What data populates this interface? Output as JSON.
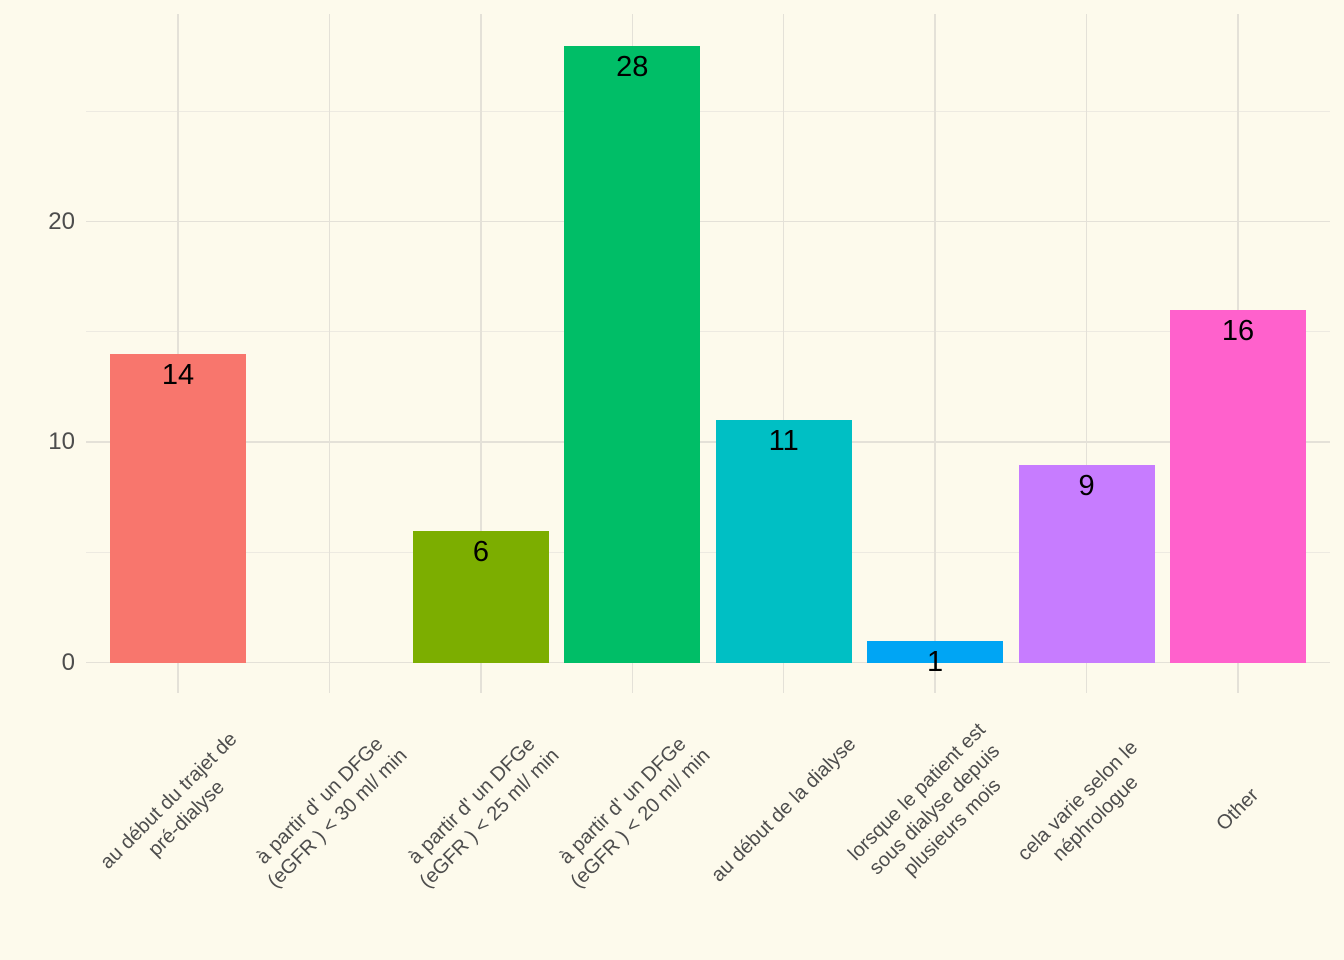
{
  "chart_data": {
    "type": "bar",
    "title": "",
    "xlabel": "",
    "ylabel": "",
    "categories": [
      "au début du trajet de\npré-dialyse",
      "à partir d' un DFGe\n(eGFR ) < 30 ml/ min",
      "à partir d' un DFGe\n(eGFR ) < 25 ml/ min",
      "à partir d' un DFGe\n(eGFR ) < 20 ml/ min",
      "au début de la dialyse",
      "lorsque le patient est\nsous dialyse depuis\nplusieurs mois",
      "cela varie selon le\nnéphrologue",
      "Other"
    ],
    "values": [
      14,
      0,
      6,
      28,
      11,
      1,
      9,
      16
    ],
    "bar_colors": [
      "#F8766D",
      "#CD9600",
      "#7CAE00",
      "#00BE67",
      "#00BFC4",
      "#00A5F4",
      "#C77CFF",
      "#FF61CC"
    ],
    "y_ticks": [
      0,
      10,
      20
    ],
    "y_minor_ticks": [
      5,
      15,
      25
    ],
    "ylim": [
      0,
      29.4
    ],
    "grid": "major+minor, horizontal major/minor + vertical category lines",
    "legend": "none",
    "colors": {
      "background": "#FDFAEC",
      "grid_major": "#E4E1D8",
      "grid_minor": "#EDEAE1",
      "axis_text": "#4D4D4D",
      "value_label": "#000000"
    }
  }
}
